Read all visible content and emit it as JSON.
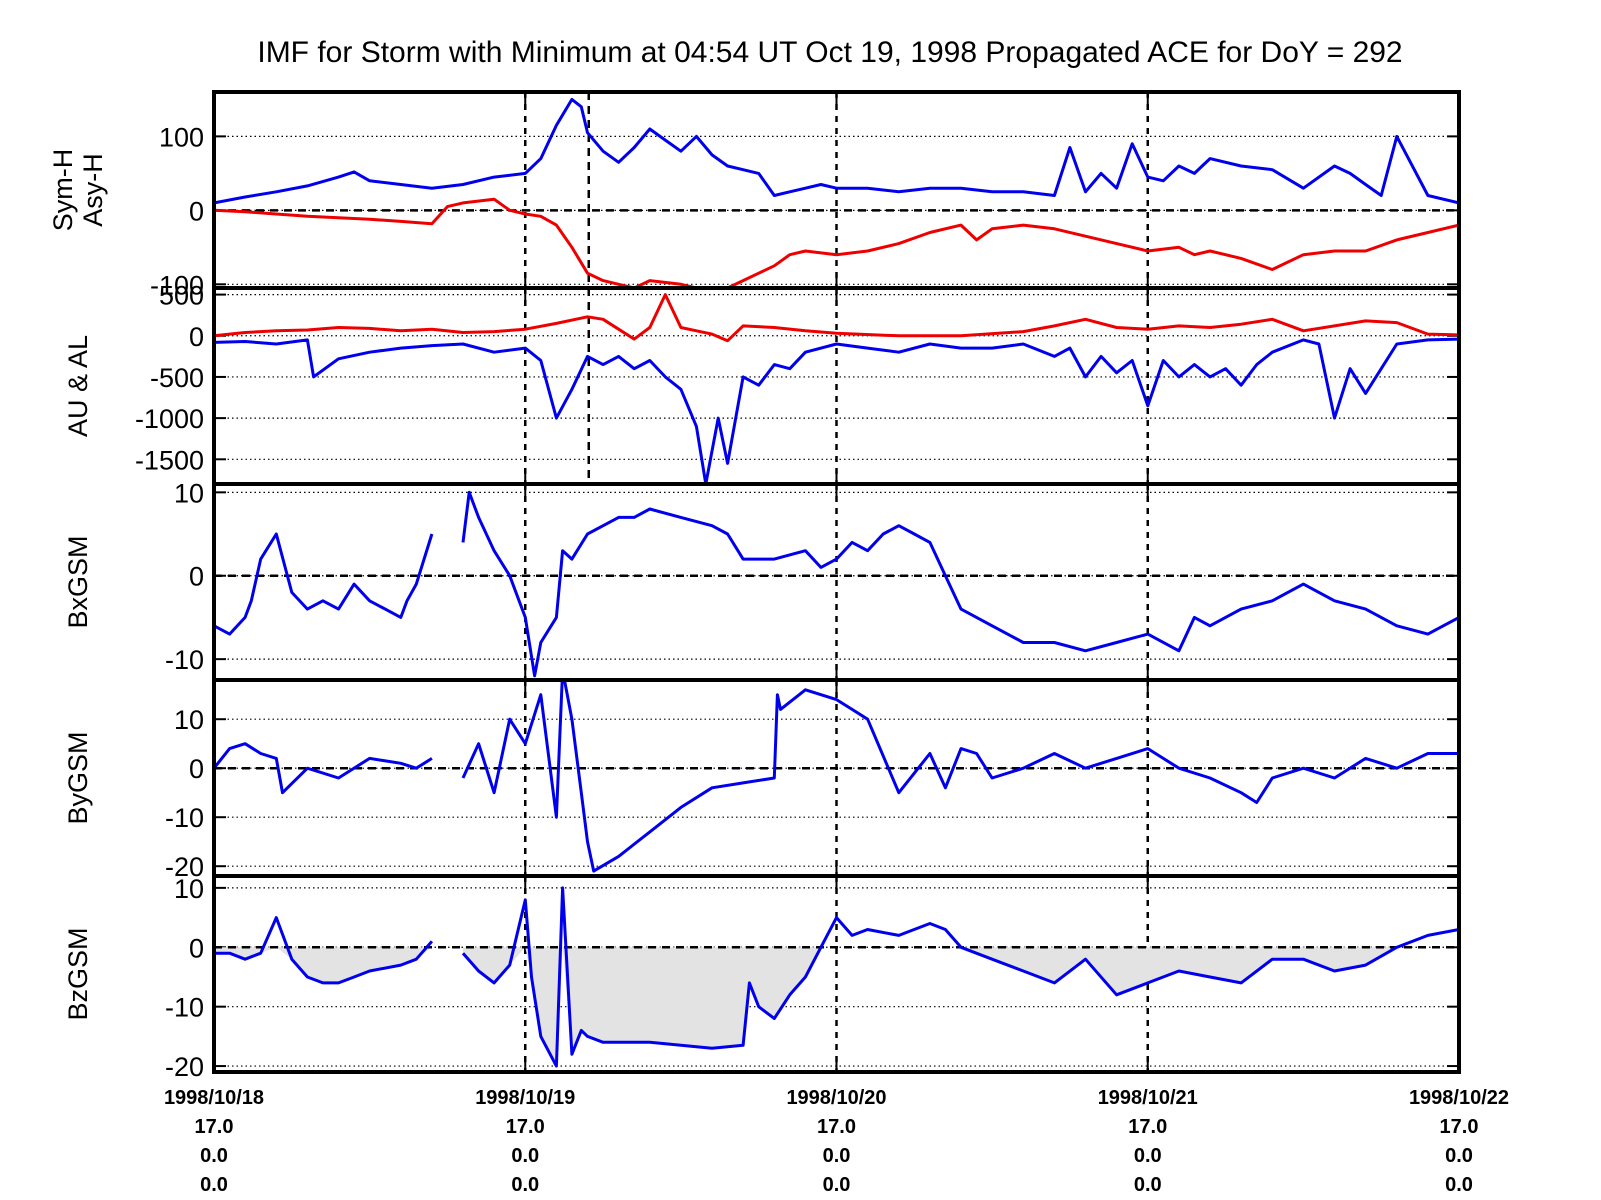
{
  "chart_data": {
    "type": "line",
    "title": "IMF for Storm with Minimum at 04:54 UT Oct 19, 1998  Propagated ACE for DoY = 292",
    "x_range": [
      "1998/10/18",
      "1998/10/22"
    ],
    "x_ticks": [
      {
        "lines": [
          "1998/10/18",
          "17.0",
          "0.0",
          "0.0"
        ]
      },
      {
        "lines": [
          "1998/10/19",
          "17.0",
          "0.0",
          "0.0"
        ]
      },
      {
        "lines": [
          "1998/10/20",
          "17.0",
          "0.0",
          "0.0"
        ]
      },
      {
        "lines": [
          "1998/10/21",
          "17.0",
          "0.0",
          "0.0"
        ]
      },
      {
        "lines": [
          "1998/10/22",
          "17.0",
          "0.0",
          "0.0"
        ]
      }
    ],
    "storm_minimum_day": 1.204,
    "colors": {
      "blue": "#0000ee",
      "red": "#ee0000",
      "fill": "#e3e3e3"
    },
    "panels": [
      {
        "id": "sym-asy",
        "ylabel_lines": [
          "Sym-H",
          "Asy-H"
        ],
        "ylim": [
          -105,
          160
        ],
        "yticks": [
          100,
          0,
          -100
        ],
        "zero_line": true,
        "series": [
          {
            "name": "Asy-H",
            "color": "blue",
            "x": [
              0,
              0.1,
              0.2,
              0.3,
              0.4,
              0.45,
              0.5,
              0.6,
              0.7,
              0.8,
              0.9,
              1.0,
              1.05,
              1.1,
              1.15,
              1.18,
              1.2,
              1.25,
              1.3,
              1.35,
              1.4,
              1.45,
              1.5,
              1.55,
              1.6,
              1.65,
              1.7,
              1.75,
              1.8,
              1.85,
              1.9,
              1.95,
              2.0,
              2.1,
              2.2,
              2.3,
              2.4,
              2.5,
              2.6,
              2.7,
              2.75,
              2.8,
              2.85,
              2.9,
              2.95,
              3.0,
              3.05,
              3.1,
              3.15,
              3.2,
              3.3,
              3.4,
              3.5,
              3.6,
              3.65,
              3.7,
              3.75,
              3.8,
              3.9,
              4.0
            ],
            "y": [
              10,
              18,
              25,
              33,
              45,
              52,
              40,
              35,
              30,
              35,
              45,
              50,
              70,
              115,
              150,
              140,
              105,
              80,
              65,
              85,
              110,
              95,
              80,
              100,
              75,
              60,
              55,
              50,
              20,
              25,
              30,
              35,
              30,
              30,
              25,
              30,
              30,
              25,
              25,
              20,
              85,
              25,
              50,
              30,
              90,
              45,
              40,
              60,
              50,
              70,
              60,
              55,
              30,
              60,
              50,
              35,
              20,
              100,
              20,
              10
            ]
          },
          {
            "name": "Sym-H",
            "color": "red",
            "x": [
              0,
              0.1,
              0.2,
              0.3,
              0.4,
              0.5,
              0.6,
              0.7,
              0.75,
              0.8,
              0.9,
              0.95,
              1.0,
              1.05,
              1.1,
              1.15,
              1.2,
              1.25,
              1.3,
              1.35,
              1.4,
              1.5,
              1.6,
              1.65,
              1.7,
              1.75,
              1.8,
              1.85,
              1.9,
              2.0,
              2.1,
              2.2,
              2.3,
              2.4,
              2.45,
              2.5,
              2.6,
              2.7,
              2.8,
              2.9,
              3.0,
              3.1,
              3.15,
              3.2,
              3.3,
              3.4,
              3.5,
              3.6,
              3.7,
              3.8,
              3.9,
              4.0
            ],
            "y": [
              0,
              -2,
              -5,
              -8,
              -10,
              -12,
              -15,
              -18,
              5,
              10,
              15,
              0,
              -5,
              -8,
              -20,
              -50,
              -85,
              -95,
              -100,
              -105,
              -95,
              -100,
              -110,
              -105,
              -95,
              -85,
              -75,
              -60,
              -55,
              -60,
              -55,
              -45,
              -30,
              -20,
              -40,
              -25,
              -20,
              -25,
              -35,
              -45,
              -55,
              -50,
              -60,
              -55,
              -65,
              -80,
              -60,
              -55,
              -55,
              -40,
              -30,
              -20
            ]
          }
        ]
      },
      {
        "id": "au-al",
        "ylabel_lines": [
          "AU & AL"
        ],
        "ylim": [
          -1800,
          580
        ],
        "yticks": [
          500,
          0,
          -500,
          -1000,
          -1500
        ],
        "zero_line": false,
        "series": [
          {
            "name": "AU",
            "color": "red",
            "x": [
              0,
              0.1,
              0.2,
              0.3,
              0.4,
              0.5,
              0.6,
              0.7,
              0.8,
              0.9,
              1.0,
              1.1,
              1.2,
              1.25,
              1.3,
              1.35,
              1.4,
              1.45,
              1.5,
              1.55,
              1.6,
              1.65,
              1.7,
              1.8,
              1.9,
              2.0,
              2.2,
              2.4,
              2.6,
              2.7,
              2.8,
              2.9,
              3.0,
              3.1,
              3.2,
              3.3,
              3.4,
              3.5,
              3.6,
              3.7,
              3.8,
              3.9,
              4.0
            ],
            "y": [
              0,
              40,
              60,
              70,
              100,
              90,
              60,
              80,
              40,
              50,
              80,
              150,
              230,
              200,
              80,
              -40,
              100,
              500,
              100,
              60,
              20,
              -60,
              120,
              100,
              60,
              30,
              0,
              0,
              50,
              120,
              200,
              100,
              80,
              120,
              100,
              140,
              200,
              60,
              120,
              180,
              160,
              20,
              10
            ]
          },
          {
            "name": "AL",
            "color": "blue",
            "x": [
              0,
              0.1,
              0.2,
              0.3,
              0.32,
              0.4,
              0.5,
              0.6,
              0.7,
              0.8,
              0.9,
              1.0,
              1.05,
              1.1,
              1.15,
              1.2,
              1.25,
              1.3,
              1.35,
              1.4,
              1.45,
              1.5,
              1.55,
              1.58,
              1.62,
              1.65,
              1.7,
              1.75,
              1.8,
              1.85,
              1.9,
              2.0,
              2.1,
              2.2,
              2.3,
              2.4,
              2.5,
              2.6,
              2.7,
              2.75,
              2.8,
              2.85,
              2.9,
              2.95,
              3.0,
              3.05,
              3.1,
              3.15,
              3.2,
              3.25,
              3.3,
              3.35,
              3.4,
              3.5,
              3.55,
              3.6,
              3.65,
              3.7,
              3.8,
              3.9,
              4.0
            ],
            "y": [
              -80,
              -70,
              -100,
              -50,
              -500,
              -280,
              -200,
              -150,
              -120,
              -100,
              -200,
              -150,
              -300,
              -1000,
              -650,
              -250,
              -350,
              -250,
              -400,
              -300,
              -500,
              -650,
              -1100,
              -1800,
              -1000,
              -1550,
              -500,
              -600,
              -350,
              -400,
              -200,
              -100,
              -150,
              -200,
              -100,
              -150,
              -150,
              -100,
              -250,
              -150,
              -500,
              -250,
              -450,
              -300,
              -850,
              -300,
              -500,
              -350,
              -500,
              -400,
              -600,
              -350,
              -200,
              -50,
              -100,
              -1000,
              -400,
              -700,
              -100,
              -50,
              -40
            ]
          }
        ]
      },
      {
        "id": "bx",
        "ylabel_lines": [
          "BxGSM"
        ],
        "ylim": [
          -12.5,
          11
        ],
        "yticks": [
          10,
          0,
          -10
        ],
        "zero_line": true,
        "series": [
          {
            "name": "BxGSM",
            "color": "blue",
            "x": [
              0,
              0.05,
              0.1,
              0.12,
              0.15,
              0.2,
              0.25,
              0.3,
              0.35,
              0.4,
              0.45,
              0.5,
              0.55,
              0.6,
              0.62,
              0.65,
              0.7,
              0.71,
              0.8,
              0.82,
              0.85,
              0.9,
              0.95,
              1.0,
              1.03,
              1.05,
              1.1,
              1.12,
              1.15,
              1.2,
              1.25,
              1.3,
              1.35,
              1.4,
              1.5,
              1.6,
              1.65,
              1.7,
              1.8,
              1.9,
              1.95,
              2.0,
              2.05,
              2.1,
              2.15,
              2.2,
              2.25,
              2.3,
              2.35,
              2.4,
              2.5,
              2.6,
              2.7,
              2.8,
              2.9,
              3.0,
              3.1,
              3.15,
              3.2,
              3.3,
              3.4,
              3.45,
              3.5,
              3.6,
              3.7,
              3.8,
              3.9,
              4.0
            ],
            "y": [
              -6,
              -7,
              -5,
              -3,
              2,
              5,
              -2,
              -4,
              -3,
              -4,
              -1,
              -3,
              -4,
              -5,
              -3,
              -1,
              5,
              null,
              4,
              10,
              7,
              3,
              0,
              -5,
              -12,
              -8,
              -5,
              3,
              2,
              5,
              6,
              7,
              7,
              8,
              7,
              6,
              5,
              2,
              2,
              3,
              1,
              2,
              4,
              3,
              5,
              6,
              5,
              4,
              0,
              -4,
              -6,
              -8,
              -8,
              -9,
              -8,
              -7,
              -9,
              -5,
              -6,
              -4,
              -3,
              -2,
              -1,
              -3,
              -4,
              -6,
              -7,
              -5
            ]
          }
        ]
      },
      {
        "id": "by",
        "ylabel_lines": [
          "ByGSM"
        ],
        "ylim": [
          -22,
          18
        ],
        "yticks": [
          10,
          0,
          -10,
          -20
        ],
        "zero_line": true,
        "series": [
          {
            "name": "ByGSM",
            "color": "blue",
            "x": [
              0,
              0.05,
              0.1,
              0.15,
              0.2,
              0.22,
              0.3,
              0.4,
              0.5,
              0.6,
              0.65,
              0.7,
              0.71,
              0.8,
              0.85,
              0.9,
              0.95,
              1.0,
              1.05,
              1.1,
              1.12,
              1.15,
              1.18,
              1.2,
              1.22,
              1.3,
              1.4,
              1.5,
              1.6,
              1.7,
              1.8,
              1.81,
              1.82,
              1.9,
              2.0,
              2.05,
              2.1,
              2.2,
              2.3,
              2.35,
              2.4,
              2.45,
              2.5,
              2.6,
              2.7,
              2.8,
              2.9,
              3.0,
              3.1,
              3.2,
              3.3,
              3.35,
              3.4,
              3.5,
              3.6,
              3.7,
              3.8,
              3.9,
              4.0
            ],
            "y": [
              0,
              4,
              5,
              3,
              2,
              -5,
              0,
              -2,
              2,
              1,
              0,
              2,
              null,
              -2,
              5,
              -5,
              10,
              5,
              15,
              -10,
              20,
              10,
              -5,
              -15,
              -21,
              -18,
              -13,
              -8,
              -4,
              -3,
              -2,
              15,
              12,
              16,
              14,
              12,
              10,
              -5,
              3,
              -4,
              4,
              3,
              -2,
              0,
              3,
              0,
              2,
              4,
              0,
              -2,
              -5,
              -7,
              -2,
              0,
              -2,
              2,
              0,
              3,
              3
            ]
          }
        ]
      },
      {
        "id": "bz",
        "ylabel_lines": [
          "BzGSM"
        ],
        "ylim": [
          -21,
          12
        ],
        "yticks": [
          10,
          0,
          -10,
          -20
        ],
        "zero_line": true,
        "shade_negative": true,
        "series": [
          {
            "name": "BzGSM",
            "color": "blue",
            "x": [
              0,
              0.05,
              0.1,
              0.15,
              0.2,
              0.25,
              0.3,
              0.35,
              0.4,
              0.45,
              0.5,
              0.6,
              0.65,
              0.7,
              0.71,
              0.8,
              0.85,
              0.9,
              0.95,
              1.0,
              1.02,
              1.05,
              1.1,
              1.12,
              1.15,
              1.18,
              1.2,
              1.25,
              1.3,
              1.4,
              1.5,
              1.6,
              1.7,
              1.72,
              1.75,
              1.8,
              1.85,
              1.9,
              1.95,
              2.0,
              2.05,
              2.1,
              2.2,
              2.3,
              2.35,
              2.4,
              2.5,
              2.6,
              2.7,
              2.8,
              2.9,
              3.0,
              3.1,
              3.2,
              3.3,
              3.4,
              3.5,
              3.6,
              3.7,
              3.8,
              3.9,
              4.0
            ],
            "y": [
              -1,
              -1,
              -2,
              -1,
              5,
              -2,
              -5,
              -6,
              -6,
              -5,
              -4,
              -3,
              -2,
              1,
              null,
              -1,
              -4,
              -6,
              -3,
              8,
              -5,
              -15,
              -20,
              10,
              -18,
              -14,
              -15,
              -16,
              -16,
              -16,
              -16.5,
              -17,
              -16.5,
              -6,
              -10,
              -12,
              -8,
              -5,
              0,
              5,
              2,
              3,
              2,
              4,
              3,
              0,
              -2,
              -4,
              -6,
              -2,
              -8,
              -6,
              -4,
              -5,
              -6,
              -2,
              -2,
              -4,
              -3,
              0,
              2,
              3
            ]
          }
        ]
      }
    ]
  }
}
